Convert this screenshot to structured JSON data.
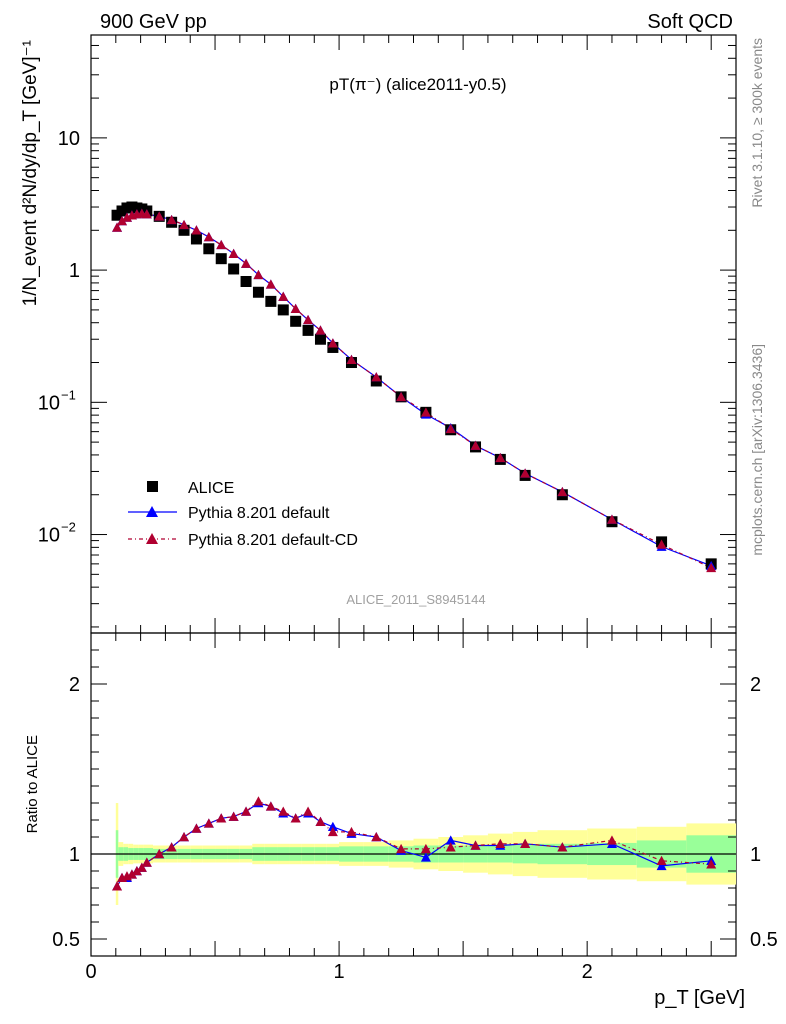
{
  "header": {
    "left": "900 GeV pp",
    "right": "Soft QCD"
  },
  "side_labels": {
    "rivet": "Rivet 3.1.10, ≥ 300k events",
    "mcplots": "mcplots.cern.ch [arXiv:1306.3436]"
  },
  "colors": {
    "data": "#000000",
    "pythia_default": "#0000ff",
    "pythia_cd": "#b00030",
    "band_inner": "#99ff99",
    "band_outer": "#ffff99"
  },
  "chart_data": [
    {
      "type": "scatter",
      "panel": "main",
      "title": "pT(π⁻) (alice2011-y0.5)",
      "ylabel": "1/N_event d²N/dy/dp_T [GeV]⁻¹",
      "yscale": "log",
      "ylim": [
        0.0018,
        60
      ],
      "xlim": [
        0,
        2.6
      ],
      "watermark": "ALICE_2011_S8945144",
      "legend_position": "bottom-left",
      "y_tick_labels": [
        "10",
        "1",
        "10⁻¹",
        "10⁻²"
      ],
      "x": [
        0.105,
        0.125,
        0.145,
        0.165,
        0.185,
        0.205,
        0.225,
        0.275,
        0.325,
        0.375,
        0.425,
        0.475,
        0.525,
        0.575,
        0.625,
        0.675,
        0.725,
        0.775,
        0.825,
        0.875,
        0.925,
        0.975,
        1.05,
        1.15,
        1.25,
        1.35,
        1.45,
        1.55,
        1.65,
        1.75,
        1.9,
        2.1,
        2.3,
        2.5
      ],
      "series": [
        {
          "name": "ALICE",
          "values": [
            2.6,
            2.8,
            2.95,
            3.0,
            2.95,
            2.9,
            2.8,
            2.55,
            2.3,
            2.0,
            1.72,
            1.45,
            1.22,
            1.02,
            0.82,
            0.68,
            0.58,
            0.5,
            0.41,
            0.35,
            0.3,
            0.26,
            0.2,
            0.145,
            0.11,
            0.084,
            0.062,
            0.046,
            0.037,
            0.028,
            0.02,
            0.0125,
            0.0088,
            0.006
          ]
        },
        {
          "name": "Pythia 8.201 default",
          "values": [
            2.1,
            2.35,
            2.5,
            2.6,
            2.65,
            2.68,
            2.65,
            2.55,
            2.4,
            2.2,
            2.0,
            1.78,
            1.55,
            1.33,
            1.12,
            0.92,
            0.78,
            0.63,
            0.51,
            0.42,
            0.35,
            0.28,
            0.21,
            0.155,
            0.11,
            0.081,
            0.064,
            0.047,
            0.038,
            0.029,
            0.021,
            0.013,
            0.0081,
            0.0058
          ]
        },
        {
          "name": "Pythia 8.201 default-CD",
          "values": [
            2.1,
            2.35,
            2.5,
            2.6,
            2.65,
            2.68,
            2.65,
            2.55,
            2.4,
            2.2,
            2.0,
            1.78,
            1.55,
            1.33,
            1.12,
            0.92,
            0.78,
            0.63,
            0.51,
            0.42,
            0.35,
            0.28,
            0.21,
            0.155,
            0.11,
            0.084,
            0.063,
            0.047,
            0.038,
            0.029,
            0.021,
            0.013,
            0.0084,
            0.0056
          ]
        }
      ]
    },
    {
      "type": "line",
      "panel": "ratio",
      "ylabel": "Ratio to ALICE",
      "xlabel": "p_T [GeV]",
      "ylim": [
        0.4,
        2.3
      ],
      "xlim": [
        0,
        2.6
      ],
      "y_tick_labels": [
        "2",
        "1",
        "0.5"
      ],
      "x_tick_labels": [
        "0",
        "1",
        "2"
      ],
      "x": [
        0.105,
        0.125,
        0.145,
        0.165,
        0.185,
        0.205,
        0.225,
        0.275,
        0.325,
        0.375,
        0.425,
        0.475,
        0.525,
        0.575,
        0.625,
        0.675,
        0.725,
        0.775,
        0.825,
        0.875,
        0.925,
        0.975,
        1.05,
        1.15,
        1.25,
        1.35,
        1.45,
        1.55,
        1.65,
        1.75,
        1.9,
        2.1,
        2.3,
        2.5
      ],
      "series": [
        {
          "name": "Pythia 8.201 default",
          "values": [
            0.81,
            0.86,
            0.86,
            0.88,
            0.9,
            0.92,
            0.95,
            1.0,
            1.04,
            1.1,
            1.15,
            1.18,
            1.21,
            1.22,
            1.25,
            1.3,
            1.28,
            1.24,
            1.21,
            1.24,
            1.19,
            1.16,
            1.12,
            1.1,
            1.02,
            0.98,
            1.08,
            1.05,
            1.05,
            1.06,
            1.04,
            1.06,
            0.93,
            0.96
          ]
        },
        {
          "name": "Pythia 8.201 default-CD",
          "values": [
            0.81,
            0.86,
            0.87,
            0.88,
            0.9,
            0.92,
            0.95,
            1.0,
            1.04,
            1.1,
            1.15,
            1.18,
            1.21,
            1.22,
            1.25,
            1.31,
            1.28,
            1.25,
            1.21,
            1.25,
            1.19,
            1.13,
            1.13,
            1.1,
            1.03,
            1.03,
            1.04,
            1.05,
            1.06,
            1.06,
            1.04,
            1.08,
            0.96,
            0.94
          ]
        }
      ],
      "band_edges": [
        0.1,
        0.11,
        0.13,
        0.15,
        0.17,
        0.19,
        0.21,
        0.25,
        0.3,
        0.35,
        0.4,
        0.45,
        0.5,
        0.55,
        0.6,
        0.65,
        0.7,
        0.75,
        0.8,
        0.85,
        0.9,
        0.95,
        1.0,
        1.1,
        1.2,
        1.3,
        1.4,
        1.5,
        1.6,
        1.7,
        1.8,
        2.0,
        2.2,
        2.4,
        2.6
      ],
      "band_inner": [
        0.14,
        0.04,
        0.04,
        0.035,
        0.035,
        0.035,
        0.035,
        0.03,
        0.03,
        0.03,
        0.03,
        0.03,
        0.03,
        0.03,
        0.03,
        0.04,
        0.04,
        0.04,
        0.04,
        0.04,
        0.04,
        0.04,
        0.045,
        0.045,
        0.045,
        0.05,
        0.05,
        0.05,
        0.05,
        0.055,
        0.06,
        0.065,
        0.08,
        0.11
      ],
      "band_outer": [
        0.3,
        0.07,
        0.06,
        0.06,
        0.055,
        0.055,
        0.055,
        0.05,
        0.05,
        0.05,
        0.05,
        0.05,
        0.05,
        0.05,
        0.05,
        0.06,
        0.06,
        0.06,
        0.06,
        0.06,
        0.06,
        0.06,
        0.07,
        0.07,
        0.08,
        0.09,
        0.1,
        0.11,
        0.12,
        0.13,
        0.14,
        0.15,
        0.16,
        0.18
      ]
    }
  ]
}
